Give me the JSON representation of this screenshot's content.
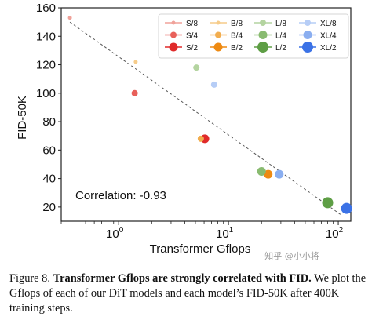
{
  "chart_data": {
    "type": "scatter",
    "xlabel": "Transformer Gflops",
    "ylabel": "FID-50K",
    "xscale": "log",
    "xlim": [
      0.3,
      130
    ],
    "ylim": [
      10,
      160
    ],
    "xticks": [
      {
        "value": 1,
        "base": "10",
        "exp": "0"
      },
      {
        "value": 10,
        "base": "10",
        "exp": "1"
      },
      {
        "value": 100,
        "base": "10",
        "exp": "2"
      }
    ],
    "yticks": [
      20,
      40,
      60,
      80,
      100,
      120,
      140,
      160
    ],
    "grid": false,
    "legend_position": "top-right",
    "annotation": "Correlation: -0.93",
    "trendline": [
      [
        0.36,
        150
      ],
      [
        108,
        14
      ]
    ],
    "series": [
      {
        "name": "S/8",
        "color": "#f0a29a",
        "size": 1,
        "points": [
          [
            0.36,
            153
          ]
        ]
      },
      {
        "name": "S/4",
        "color": "#e8605a",
        "size": 2,
        "points": [
          [
            1.4,
            100
          ]
        ]
      },
      {
        "name": "S/2",
        "color": "#e02a2a",
        "size": 3,
        "points": [
          [
            6.1,
            68
          ]
        ]
      },
      {
        "name": "B/8",
        "color": "#f6cc8a",
        "size": 1,
        "points": [
          [
            1.43,
            122
          ]
        ]
      },
      {
        "name": "B/4",
        "color": "#f2ad4e",
        "size": 2,
        "points": [
          [
            5.6,
            68
          ]
        ]
      },
      {
        "name": "B/2",
        "color": "#ee8a12",
        "size": 3,
        "points": [
          [
            23,
            43
          ]
        ]
      },
      {
        "name": "L/8",
        "color": "#b4d4a0",
        "size": 2,
        "points": [
          [
            5.1,
            118
          ]
        ]
      },
      {
        "name": "L/4",
        "color": "#89bb70",
        "size": 3,
        "points": [
          [
            20,
            45
          ]
        ]
      },
      {
        "name": "L/2",
        "color": "#5e9e45",
        "size": 4,
        "points": [
          [
            80,
            23
          ]
        ]
      },
      {
        "name": "XL/8",
        "color": "#b6cdf6",
        "size": 2,
        "points": [
          [
            7.4,
            106
          ]
        ]
      },
      {
        "name": "XL/4",
        "color": "#8aaef0",
        "size": 3,
        "points": [
          [
            29,
            43
          ]
        ]
      },
      {
        "name": "XL/2",
        "color": "#3b72e6",
        "size": 4,
        "points": [
          [
            119,
            19
          ]
        ]
      }
    ]
  },
  "watermark": "知乎 @小小将",
  "caption": {
    "figure_label": "Figure 8.",
    "bold_text": "Transformer Gflops are strongly correlated with FID.",
    "body_text": "We plot the Gflops of each of our DiT models and each model’s FID-50K after 400K training steps."
  }
}
